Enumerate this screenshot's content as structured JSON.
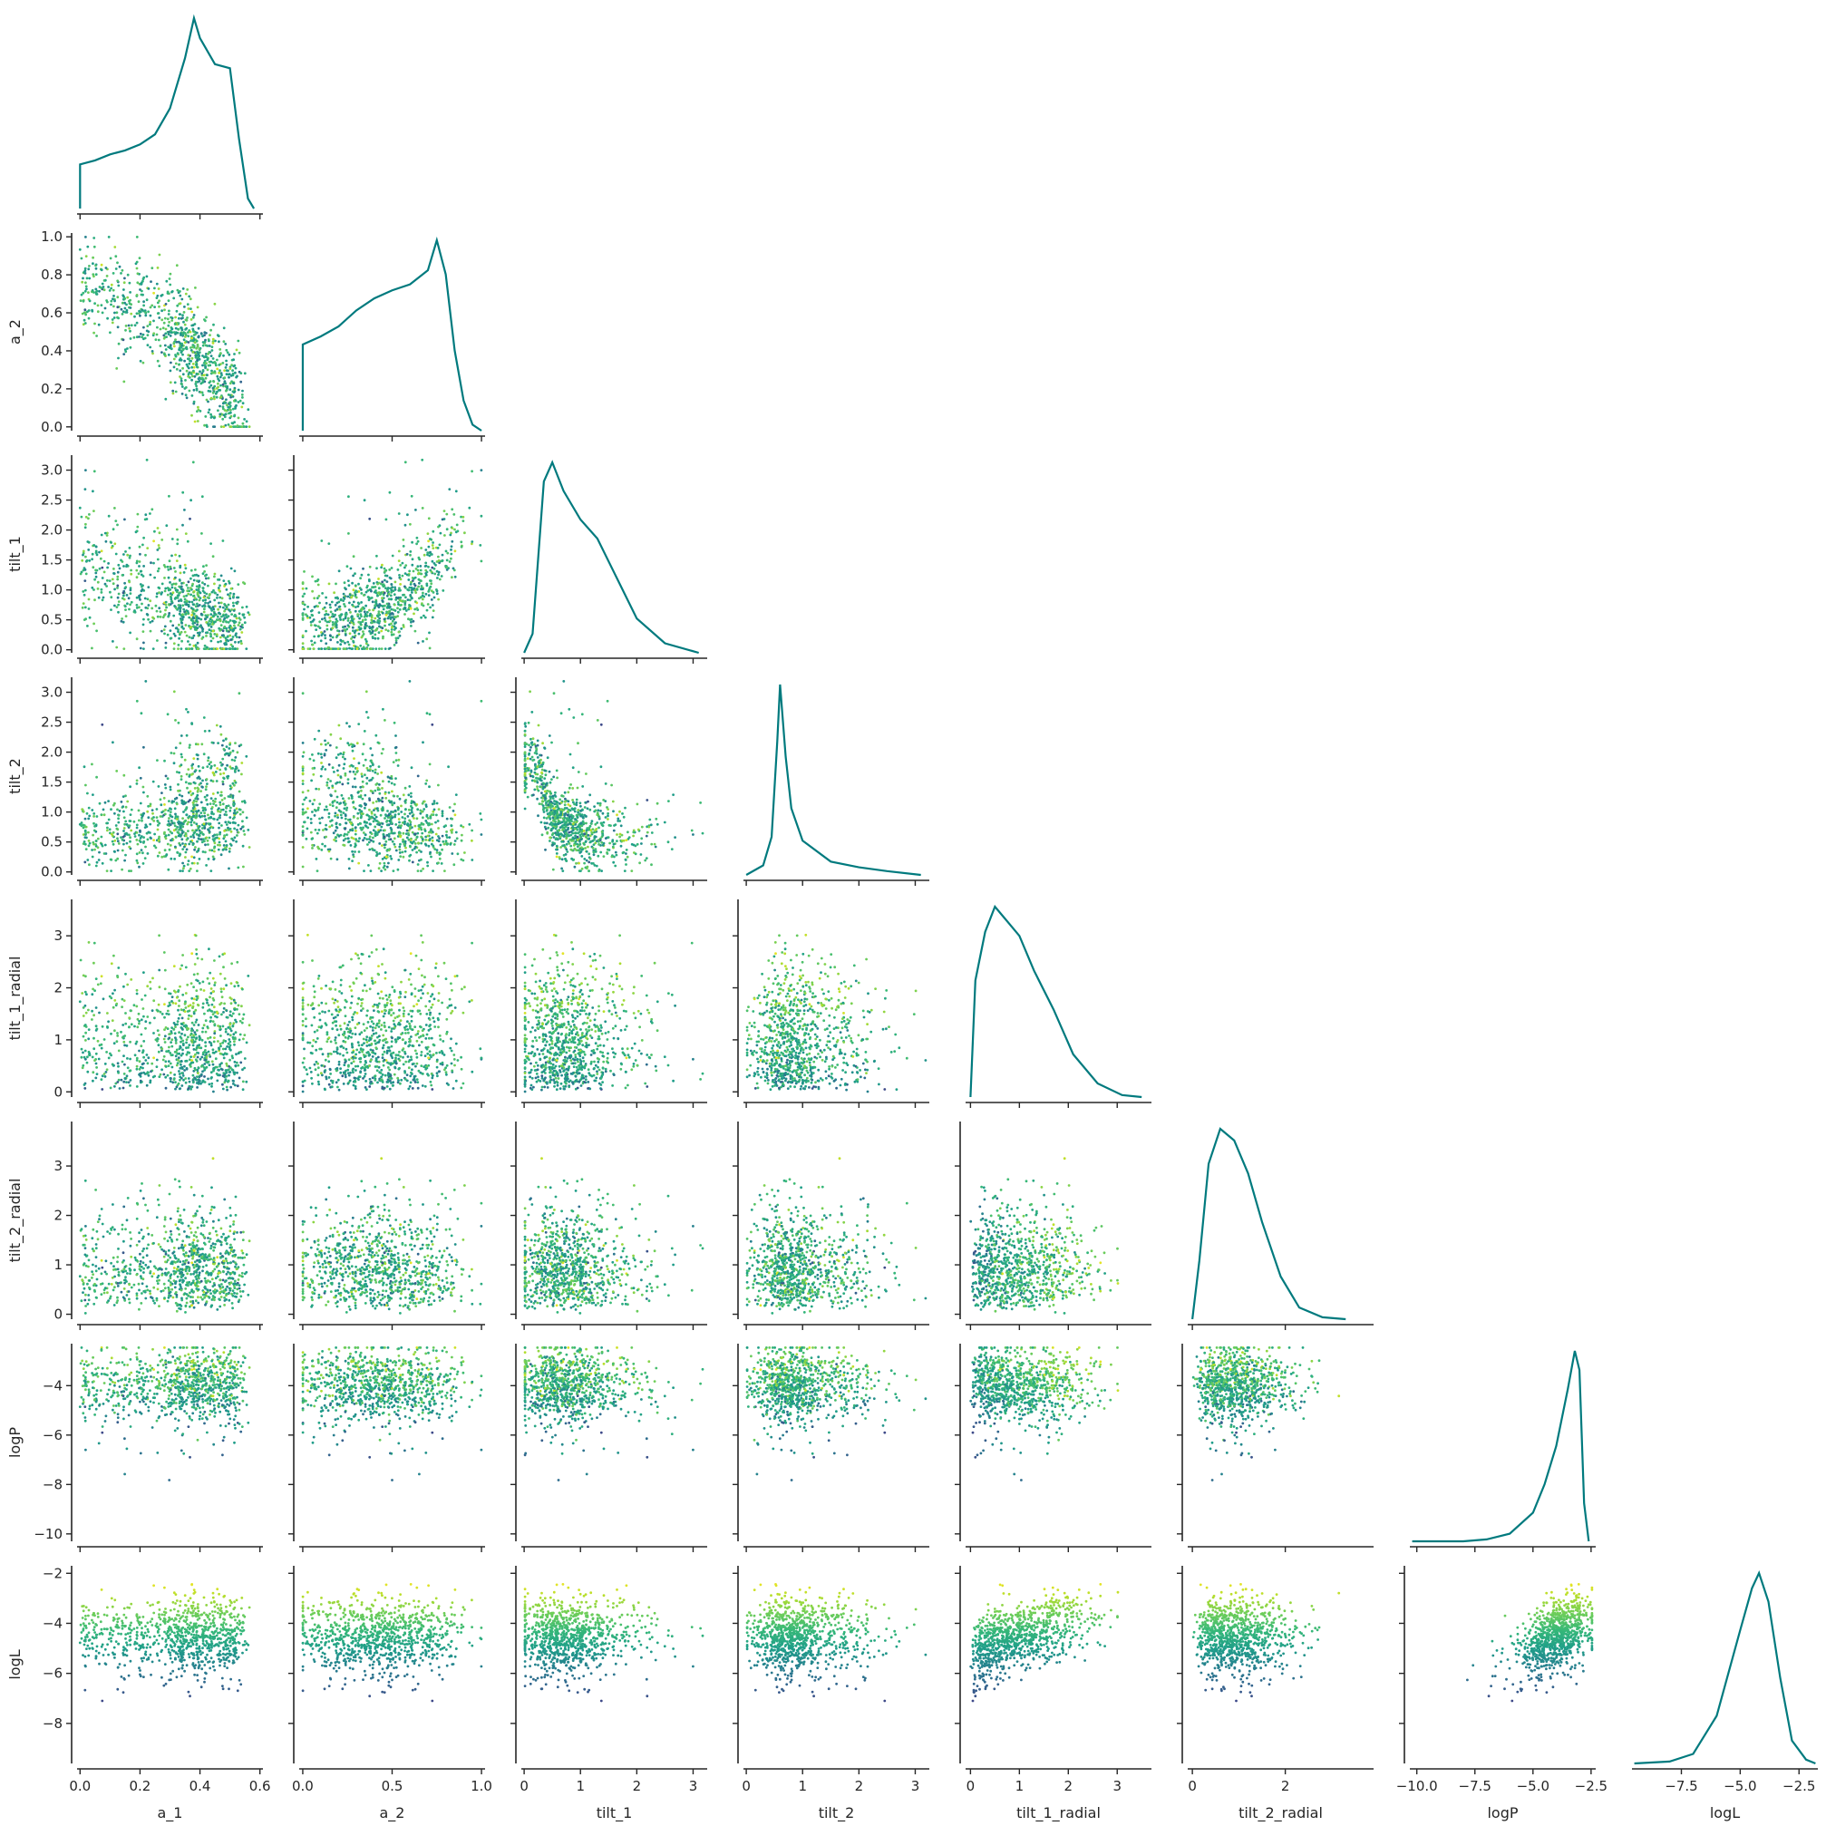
{
  "chart_data": {
    "type": "scatter",
    "variables": [
      "a_1",
      "a_2",
      "tilt_1",
      "tilt_2",
      "tilt_1_radial",
      "tilt_2_radial",
      "logP",
      "logL"
    ],
    "colormap": "viridis",
    "hist_color": "#007a7e",
    "axes": {
      "a_1": {
        "range": [
          -0.01,
          0.61
        ],
        "ticks": [
          0.0,
          0.2,
          0.4,
          0.6
        ],
        "tick_labels": [
          "0.0",
          "0.2",
          "0.4",
          "0.6"
        ]
      },
      "a_2": {
        "range": [
          -0.02,
          1.02
        ],
        "ticks": [
          0.0,
          0.2,
          0.4,
          0.6,
          0.8,
          1.0
        ],
        "tick_labels": [
          "0.0",
          "0.2",
          "0.4",
          "0.6",
          "0.8",
          "1.0"
        ],
        "x_ticks": [
          0.0,
          0.5,
          1.0
        ],
        "x_tick_labels": [
          "0.0",
          "0.5",
          "1.0"
        ]
      },
      "tilt_1": {
        "range": [
          -0.05,
          3.25
        ],
        "ticks": [
          0.0,
          0.5,
          1.0,
          1.5,
          2.0,
          2.5,
          3.0
        ],
        "tick_labels": [
          "0.0",
          "0.5",
          "1.0",
          "1.5",
          "2.0",
          "2.5",
          "3.0"
        ],
        "x_ticks": [
          0,
          1,
          2,
          3
        ],
        "x_tick_labels": [
          "0",
          "1",
          "2",
          "3"
        ]
      },
      "tilt_2": {
        "range": [
          -0.05,
          3.25
        ],
        "ticks": [
          0.0,
          0.5,
          1.0,
          1.5,
          2.0,
          2.5,
          3.0
        ],
        "tick_labels": [
          "0.0",
          "0.5",
          "1.0",
          "1.5",
          "2.0",
          "2.5",
          "3.0"
        ],
        "x_ticks": [
          0,
          1,
          2,
          3
        ],
        "x_tick_labels": [
          "0",
          "1",
          "2",
          "3"
        ]
      },
      "tilt_1_radial": {
        "range": [
          -0.1,
          3.7
        ],
        "ticks": [
          0,
          1,
          2,
          3
        ],
        "tick_labels": [
          "0",
          "1",
          "2",
          "3"
        ]
      },
      "tilt_2_radial": {
        "range": [
          -0.1,
          3.9
        ],
        "ticks": [
          0,
          1,
          2,
          3
        ],
        "tick_labels": [
          "0",
          "1",
          "2",
          "3"
        ],
        "x_ticks": [
          0,
          2
        ],
        "x_tick_labels": [
          "0",
          "2"
        ]
      },
      "logP": {
        "range": [
          -10.3,
          -2.3
        ],
        "ticks": [
          -10,
          -8,
          -6,
          -4
        ],
        "tick_labels": [
          "−10",
          "−8",
          "−6",
          "−4"
        ],
        "x_ticks": [
          -10.0,
          -7.5,
          -5.0,
          -2.5
        ],
        "x_tick_labels": [
          "−10.0",
          "−7.5",
          "−5.0",
          "−2.5"
        ]
      },
      "logL": {
        "range": [
          -9.6,
          -1.7
        ],
        "ticks": [
          -8,
          -6,
          -4,
          -2
        ],
        "tick_labels": [
          "−8",
          "−6",
          "−4",
          "−2"
        ],
        "x_ticks": [
          -7.5,
          -5.0,
          -2.5
        ],
        "x_tick_labels": [
          "−7.5",
          "−5.0",
          "−2.5"
        ]
      }
    },
    "layout": "lower-triangle corner plot; step histograms on diagonal",
    "diagonal_histograms": {
      "a_1": {
        "x": [
          0.0,
          0.05,
          0.1,
          0.15,
          0.2,
          0.25,
          0.3,
          0.35,
          0.38,
          0.4,
          0.45,
          0.5,
          0.53,
          0.56,
          0.58
        ],
        "density": [
          0.22,
          0.24,
          0.27,
          0.29,
          0.32,
          0.37,
          0.5,
          0.75,
          0.95,
          0.85,
          0.72,
          0.7,
          0.35,
          0.05,
          0.0
        ]
      },
      "a_2": {
        "x": [
          0.0,
          0.1,
          0.2,
          0.3,
          0.4,
          0.5,
          0.6,
          0.7,
          0.75,
          0.8,
          0.85,
          0.9,
          0.95,
          1.0
        ],
        "density": [
          0.43,
          0.47,
          0.52,
          0.6,
          0.66,
          0.7,
          0.73,
          0.8,
          0.95,
          0.78,
          0.4,
          0.15,
          0.03,
          0.0
        ]
      },
      "tilt_1": {
        "x": [
          0.0,
          0.15,
          0.25,
          0.35,
          0.5,
          0.7,
          1.0,
          1.3,
          1.6,
          2.0,
          2.5,
          3.1
        ],
        "density": [
          0.0,
          0.1,
          0.5,
          0.9,
          1.0,
          0.85,
          0.7,
          0.6,
          0.42,
          0.18,
          0.05,
          0.0
        ]
      },
      "tilt_2": {
        "x": [
          0.0,
          0.3,
          0.45,
          0.55,
          0.6,
          0.7,
          0.8,
          1.0,
          1.5,
          2.0,
          2.5,
          3.1
        ],
        "density": [
          0.0,
          0.05,
          0.2,
          0.7,
          1.0,
          0.62,
          0.35,
          0.18,
          0.07,
          0.04,
          0.02,
          0.0
        ]
      },
      "tilt_1_radial": {
        "x": [
          0.0,
          0.1,
          0.3,
          0.5,
          0.7,
          1.0,
          1.3,
          1.7,
          2.1,
          2.6,
          3.1,
          3.5
        ],
        "density": [
          0.0,
          0.6,
          0.85,
          0.98,
          0.92,
          0.83,
          0.65,
          0.45,
          0.22,
          0.07,
          0.01,
          0.0
        ]
      },
      "tilt_2_radial": {
        "x": [
          0.0,
          0.15,
          0.35,
          0.6,
          0.9,
          1.2,
          1.5,
          1.9,
          2.3,
          2.8,
          3.3
        ],
        "density": [
          0.0,
          0.3,
          0.8,
          0.98,
          0.92,
          0.75,
          0.5,
          0.22,
          0.06,
          0.01,
          0.0
        ]
      },
      "logP": {
        "x": [
          -10.2,
          -8.0,
          -7.0,
          -6.0,
          -5.0,
          -4.5,
          -4.0,
          -3.5,
          -3.2,
          -3.0,
          -2.8,
          -2.6
        ],
        "density": [
          0.0,
          0.0,
          0.01,
          0.04,
          0.15,
          0.3,
          0.5,
          0.8,
          1.0,
          0.9,
          0.2,
          0.0
        ]
      },
      "logL": {
        "x": [
          -9.5,
          -8.0,
          -7.0,
          -6.0,
          -5.0,
          -4.5,
          -4.2,
          -3.8,
          -3.3,
          -2.8,
          -2.2,
          -1.8
        ],
        "density": [
          0.0,
          0.01,
          0.05,
          0.25,
          0.7,
          0.92,
          1.0,
          0.85,
          0.45,
          0.12,
          0.02,
          0.0
        ]
      }
    },
    "pairwise_trends": [
      {
        "x": "a_1",
        "y": "a_2",
        "x_values": [
          0.0,
          0.2,
          0.4,
          0.55
        ],
        "y_values": [
          0.75,
          0.65,
          0.35,
          0.08
        ]
      },
      {
        "x": "a_2",
        "y": "tilt_1",
        "x_values": [
          0.0,
          0.4,
          0.7,
          0.9
        ],
        "y_values": [
          0.4,
          0.6,
          1.1,
          2.0
        ]
      },
      {
        "x": "a_1",
        "y": "tilt_2",
        "x_values": [
          0.0,
          0.3,
          0.45,
          0.55
        ],
        "y_values": [
          0.6,
          0.7,
          1.0,
          1.8
        ]
      },
      {
        "x": "tilt_1",
        "y": "tilt_2",
        "x_values": [
          0.2,
          0.5,
          1.0,
          2.0,
          3.0
        ],
        "y_values": [
          1.8,
          0.9,
          0.65,
          0.55,
          0.55
        ]
      },
      {
        "x": "tilt_1_radial",
        "y": "logL",
        "x_values": [
          0.0,
          0.5,
          1.5,
          2.5
        ],
        "y_values": [
          -6.5,
          -5.0,
          -3.8,
          -3.0
        ]
      },
      {
        "x": "logP",
        "y": "logL",
        "x_values": [
          -7.0,
          -5.0,
          -4.0,
          -3.0
        ],
        "y_values": [
          -7.0,
          -5.5,
          -4.5,
          -3.5
        ]
      }
    ]
  }
}
